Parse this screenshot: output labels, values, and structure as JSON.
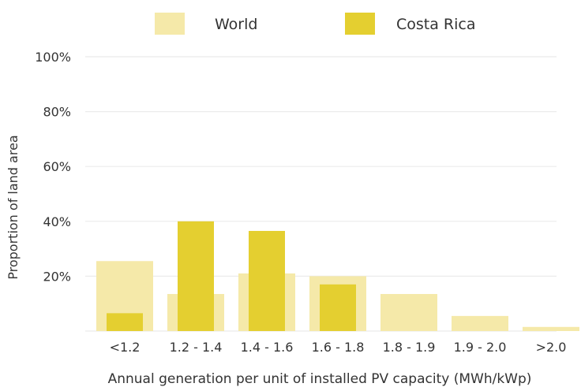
{
  "chart_data": {
    "type": "bar",
    "categories": [
      "<1.2",
      "1.2 - 1.4",
      "1.4 - 1.6",
      "1.6 - 1.8",
      "1.8 - 1.9",
      "1.9 - 2.0",
      ">2.0"
    ],
    "series": [
      {
        "name": "World",
        "values": [
          25.5,
          13.5,
          21,
          20,
          13.5,
          5.5,
          1.5
        ],
        "color": "#f5e9a9"
      },
      {
        "name": "Costa Rica",
        "values": [
          6.5,
          40,
          36.5,
          17,
          0,
          0,
          0
        ],
        "color": "#e4cf30"
      }
    ],
    "title": "",
    "xlabel": "Annual generation per unit of installed PV capacity (MWh/kWp)",
    "ylabel": "Proportion of land area",
    "ylim": [
      0,
      100
    ],
    "yticks": [
      {
        "value": 20,
        "label": "20%"
      },
      {
        "value": 40,
        "label": "40%"
      },
      {
        "value": 60,
        "label": "60%"
      },
      {
        "value": 80,
        "label": "80%"
      },
      {
        "value": 100,
        "label": "100%"
      }
    ],
    "grid": true,
    "legend_position": "top-center"
  }
}
